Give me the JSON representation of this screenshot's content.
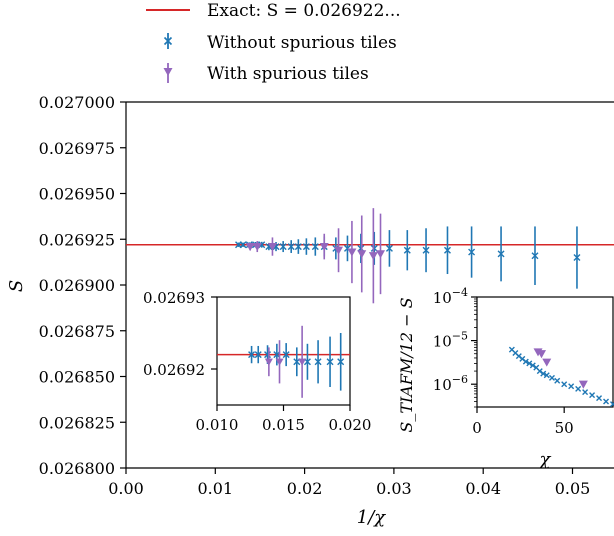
{
  "colors": {
    "exact": "#d62728",
    "without": "#1f77b4",
    "with": "#9467bd"
  },
  "legend": {
    "exact": "Exact: S = 0.026922...",
    "without": "Without spurious tiles",
    "with": "With spurious tiles"
  },
  "chart_data": [
    {
      "type": "scatter",
      "xlabel": "1/χ",
      "ylabel": "S",
      "xlim": [
        0.0,
        0.055
      ],
      "ylim": [
        0.0268,
        0.027
      ],
      "xticks": [
        "0.00",
        "0.01",
        "0.02",
        "0.03",
        "0.04",
        "0.05"
      ],
      "yticks": [
        "0.026800",
        "0.026825",
        "0.026850",
        "0.026875",
        "0.026900",
        "0.026925",
        "0.026950",
        "0.026975",
        "0.027000"
      ],
      "hline": 0.026922,
      "series": [
        {
          "name": "Without spurious tiles",
          "marker": "x",
          "points": [
            {
              "x": 0.0126,
              "y": 0.026922,
              "err": 1.2e-06
            },
            {
              "x": 0.0131,
              "y": 0.026922,
              "err": 1.2e-06
            },
            {
              "x": 0.0138,
              "y": 0.026922,
              "err": 1.3e-06
            },
            {
              "x": 0.0145,
              "y": 0.026922,
              "err": 1.5e-06
            },
            {
              "x": 0.0152,
              "y": 0.026922,
              "err": 1.6e-06
            },
            {
              "x": 0.016,
              "y": 0.026921,
              "err": 2e-06
            },
            {
              "x": 0.0168,
              "y": 0.026921,
              "err": 2.5e-06
            },
            {
              "x": 0.0176,
              "y": 0.026921,
              "err": 3e-06
            },
            {
              "x": 0.0185,
              "y": 0.026921,
              "err": 3.5e-06
            },
            {
              "x": 0.0193,
              "y": 0.026921,
              "err": 4e-06
            },
            {
              "x": 0.0202,
              "y": 0.026921,
              "err": 4.5e-06
            },
            {
              "x": 0.0212,
              "y": 0.026921,
              "err": 5e-06
            },
            {
              "x": 0.0222,
              "y": 0.026921,
              "err": 5.5e-06
            },
            {
              "x": 0.0235,
              "y": 0.02692,
              "err": 6e-06
            },
            {
              "x": 0.0248,
              "y": 0.02692,
              "err": 7e-06
            },
            {
              "x": 0.0263,
              "y": 0.02692,
              "err": 8e-06
            },
            {
              "x": 0.0278,
              "y": 0.02692,
              "err": 9e-06
            },
            {
              "x": 0.0295,
              "y": 0.02692,
              "err": 1e-05
            },
            {
              "x": 0.0315,
              "y": 0.026919,
              "err": 1.1e-05
            },
            {
              "x": 0.0336,
              "y": 0.026919,
              "err": 1.2e-05
            },
            {
              "x": 0.036,
              "y": 0.026919,
              "err": 1.3e-05
            },
            {
              "x": 0.0387,
              "y": 0.026918,
              "err": 1.4e-05
            },
            {
              "x": 0.042,
              "y": 0.026917,
              "err": 1.5e-05
            },
            {
              "x": 0.0458,
              "y": 0.026916,
              "err": 1.6e-05
            },
            {
              "x": 0.0505,
              "y": 0.026915,
              "err": 1.7e-05
            }
          ]
        },
        {
          "name": "With spurious tiles",
          "marker": "v",
          "points": [
            {
              "x": 0.0139,
              "y": 0.026921,
              "err": 2e-06
            },
            {
              "x": 0.0147,
              "y": 0.026921,
              "err": 3e-06
            },
            {
              "x": 0.0164,
              "y": 0.026921,
              "err": 5e-06
            },
            {
              "x": 0.0222,
              "y": 0.026921,
              "err": 7e-06
            },
            {
              "x": 0.0238,
              "y": 0.026919,
              "err": 1.2e-05
            },
            {
              "x": 0.0253,
              "y": 0.026918,
              "err": 1.7e-05
            },
            {
              "x": 0.0264,
              "y": 0.026917,
              "err": 2.1e-05
            },
            {
              "x": 0.0277,
              "y": 0.026916,
              "err": 2.6e-05
            },
            {
              "x": 0.0285,
              "y": 0.026917,
              "err": 2.2e-05
            }
          ]
        }
      ]
    },
    {
      "type": "scatter",
      "xlim": [
        0.01,
        0.02
      ],
      "ylim": [
        0.026915,
        0.02693
      ],
      "xticks": [
        "0.010",
        "0.015",
        "0.020"
      ],
      "yticks": [
        "0.02692",
        "0.02693"
      ],
      "hline": 0.026922,
      "series": [
        {
          "name": "Without spurious tiles",
          "marker": "x",
          "points": [
            {
              "x": 0.0126,
              "y": 0.026922,
              "err": 1.2e-06
            },
            {
              "x": 0.0131,
              "y": 0.026922,
              "err": 1.2e-06
            },
            {
              "x": 0.0138,
              "y": 0.026922,
              "err": 1.3e-06
            },
            {
              "x": 0.0145,
              "y": 0.026922,
              "err": 1.5e-06
            },
            {
              "x": 0.0152,
              "y": 0.026922,
              "err": 1.6e-06
            },
            {
              "x": 0.016,
              "y": 0.026921,
              "err": 2e-06
            },
            {
              "x": 0.0168,
              "y": 0.026921,
              "err": 2.5e-06
            },
            {
              "x": 0.0176,
              "y": 0.026921,
              "err": 3e-06
            },
            {
              "x": 0.0185,
              "y": 0.026921,
              "err": 3.5e-06
            },
            {
              "x": 0.0193,
              "y": 0.026921,
              "err": 4e-06
            }
          ]
        },
        {
          "name": "With spurious tiles",
          "marker": "v",
          "points": [
            {
              "x": 0.0139,
              "y": 0.026921,
              "err": 2e-06
            },
            {
              "x": 0.0147,
              "y": 0.026921,
              "err": 3e-06
            },
            {
              "x": 0.0164,
              "y": 0.026921,
              "err": 5e-06
            }
          ]
        }
      ]
    },
    {
      "type": "scatter",
      "xlabel": "χ",
      "ylabel": "S_TIAFM/12 − S",
      "yscale": "log",
      "xlim": [
        0,
        78
      ],
      "ylim": [
        3e-07,
        0.0001
      ],
      "xticks": [
        "0",
        "50"
      ],
      "yticks": [
        "10^-4",
        "10^-5",
        "10^-6"
      ],
      "series": [
        {
          "name": "Without spurious tiles",
          "marker": "x",
          "points": [
            {
              "x": 20,
              "y": 6.2e-06
            },
            {
              "x": 22,
              "y": 5.2e-06
            },
            {
              "x": 24,
              "y": 4.4e-06
            },
            {
              "x": 26,
              "y": 3.8e-06
            },
            {
              "x": 28,
              "y": 3.3e-06
            },
            {
              "x": 30,
              "y": 3e-06
            },
            {
              "x": 32,
              "y": 2.7e-06
            },
            {
              "x": 34,
              "y": 2.4e-06
            },
            {
              "x": 36,
              "y": 2e-06
            },
            {
              "x": 38,
              "y": 1.75e-06
            },
            {
              "x": 40,
              "y": 1.6e-06
            },
            {
              "x": 43,
              "y": 1.4e-06
            },
            {
              "x": 46,
              "y": 1.2e-06
            },
            {
              "x": 50,
              "y": 1e-06
            },
            {
              "x": 54,
              "y": 9e-07
            },
            {
              "x": 58,
              "y": 7.8e-07
            },
            {
              "x": 62,
              "y": 6.6e-07
            },
            {
              "x": 66,
              "y": 5.6e-07
            },
            {
              "x": 70,
              "y": 4.8e-07
            },
            {
              "x": 74,
              "y": 4e-07
            },
            {
              "x": 78,
              "y": 3.5e-07
            }
          ]
        },
        {
          "name": "With spurious tiles",
          "marker": "v",
          "points": [
            {
              "x": 35,
              "y": 5.5e-06
            },
            {
              "x": 37,
              "y": 5e-06
            },
            {
              "x": 40,
              "y": 3.2e-06
            },
            {
              "x": 61,
              "y": 1e-06
            }
          ]
        }
      ]
    }
  ]
}
